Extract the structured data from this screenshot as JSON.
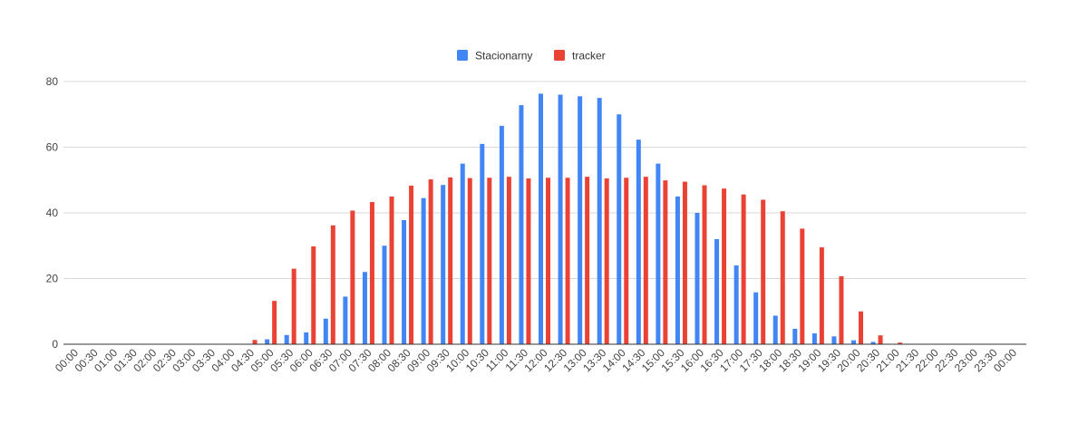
{
  "chart_data": {
    "type": "bar",
    "categories": [
      "00:00",
      "00:30",
      "01:00",
      "01:30",
      "02:00",
      "02:30",
      "03:00",
      "03:30",
      "04:00",
      "04:30",
      "05:00",
      "05:30",
      "06:00",
      "06:30",
      "07:00",
      "07:30",
      "08:00",
      "08:30",
      "09:00",
      "09:30",
      "10:00",
      "10:30",
      "11:00",
      "11:30",
      "12:00",
      "12:30",
      "13:00",
      "13:30",
      "14:00",
      "14:30",
      "15:00",
      "15:30",
      "16:00",
      "16:30",
      "17:00",
      "17:30",
      "18:00",
      "18:30",
      "19:00",
      "19:30",
      "20:00",
      "20:30",
      "21:00",
      "21:30",
      "22:00",
      "22:30",
      "23:00",
      "23:30",
      "00:00"
    ],
    "series": [
      {
        "name": "Stacionarny",
        "color": "#4285f4",
        "values": [
          0,
          0,
          0,
          0,
          0,
          0,
          0,
          0,
          0,
          0,
          1.5,
          2.8,
          3.6,
          7.8,
          14.5,
          22,
          30,
          37.8,
          44.5,
          48.5,
          55,
          61,
          66.5,
          72.8,
          76.3,
          76,
          75.5,
          75,
          70,
          62.3,
          55,
          45,
          40,
          32,
          24,
          15.8,
          8.7,
          4.7,
          3.3,
          2.4,
          1.2,
          0.7,
          0,
          0,
          0,
          0,
          0,
          0,
          0
        ]
      },
      {
        "name": "tracker",
        "color": "#ea4335",
        "values": [
          0,
          0,
          0,
          0,
          0,
          0,
          0,
          0,
          0,
          1.3,
          13.2,
          23,
          29.8,
          36.2,
          40.7,
          43.3,
          45,
          48.3,
          50.2,
          50.8,
          50.6,
          50.7,
          51,
          50.5,
          50.7,
          50.7,
          51,
          50.5,
          50.7,
          51,
          49.9,
          49.5,
          48.4,
          47.4,
          45.6,
          44,
          40.5,
          35.2,
          29.5,
          20.7,
          10,
          2.7,
          0.5,
          0,
          0,
          0,
          0,
          0,
          0
        ]
      }
    ],
    "ylim": [
      0,
      80
    ],
    "yticks": [
      0,
      20,
      40,
      60,
      80
    ],
    "grid": true,
    "legend_position": "top-center"
  }
}
